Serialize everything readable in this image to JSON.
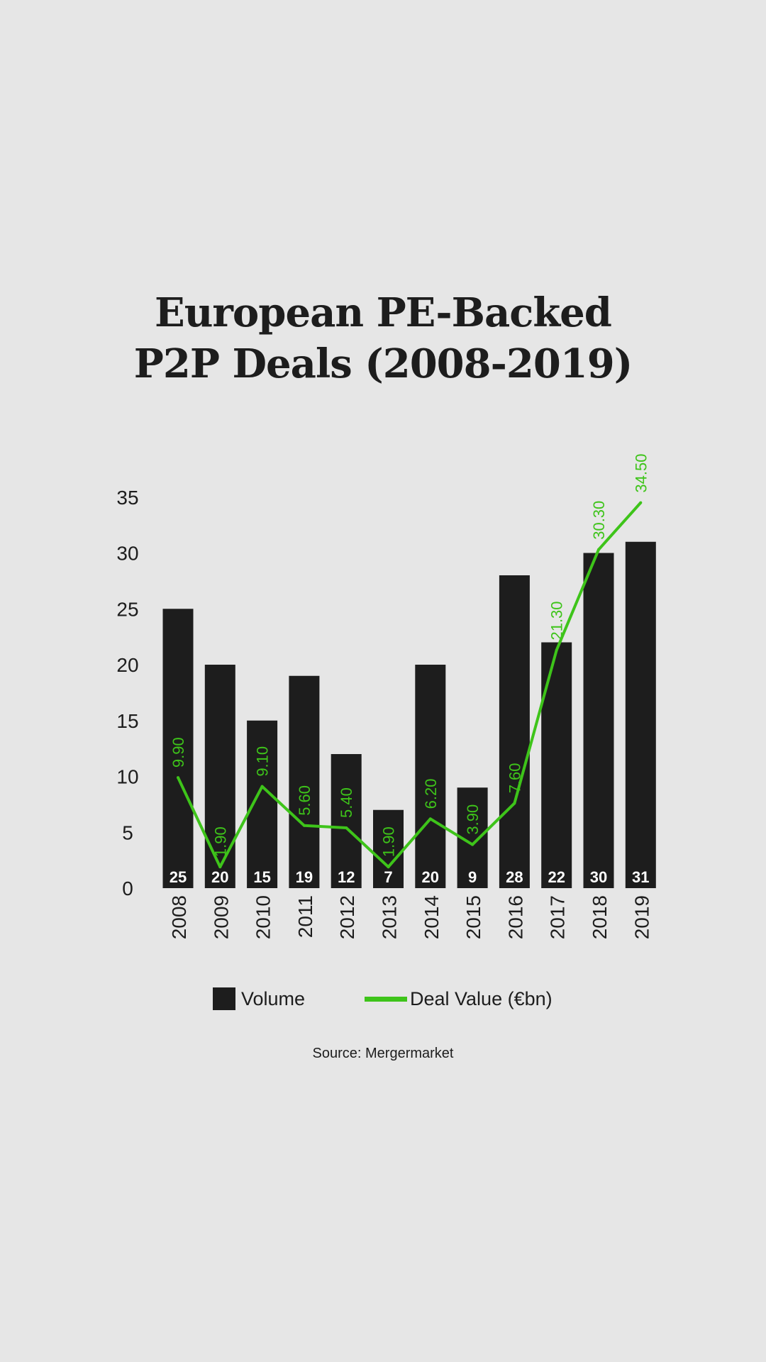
{
  "title_line1": "European PE-Backed",
  "title_line2": "P2P Deals (2008-2019)",
  "source": "Source: Mergermarket",
  "colors": {
    "bar": "#1d1d1d",
    "line": "#3ec41a",
    "background": "#e6e6e6",
    "bar_label": "#ffffff"
  },
  "chart_data": {
    "type": "bar",
    "title": "European PE-Backed P2P Deals (2008-2019)",
    "categories": [
      "2008",
      "2009",
      "2010",
      "2011",
      "2012",
      "2013",
      "2014",
      "2015",
      "2016",
      "2017",
      "2018",
      "2019"
    ],
    "y_ticks": [
      0,
      5,
      10,
      15,
      20,
      25,
      30,
      35
    ],
    "ylim": [
      0,
      35
    ],
    "grid": false,
    "legend_position": "bottom",
    "series": [
      {
        "name": "Volume",
        "type": "bar",
        "values": [
          25,
          20,
          15,
          19,
          12,
          7,
          20,
          9,
          28,
          22,
          30,
          31
        ],
        "labels": [
          "25",
          "20",
          "15",
          "19",
          "12",
          "7",
          "20",
          "9",
          "28",
          "22",
          "30",
          "31"
        ]
      },
      {
        "name": "Deal Value (€bn)",
        "type": "line",
        "values": [
          9.9,
          1.9,
          9.1,
          5.6,
          5.4,
          1.9,
          6.2,
          3.9,
          7.6,
          21.3,
          30.3,
          34.5
        ],
        "labels": [
          "9.90",
          "1.90",
          "9.10",
          "5.60",
          "5.40",
          "1.90",
          "6.20",
          "3.90",
          "7.60",
          "21.30",
          "30.30",
          "34.50"
        ]
      }
    ]
  }
}
